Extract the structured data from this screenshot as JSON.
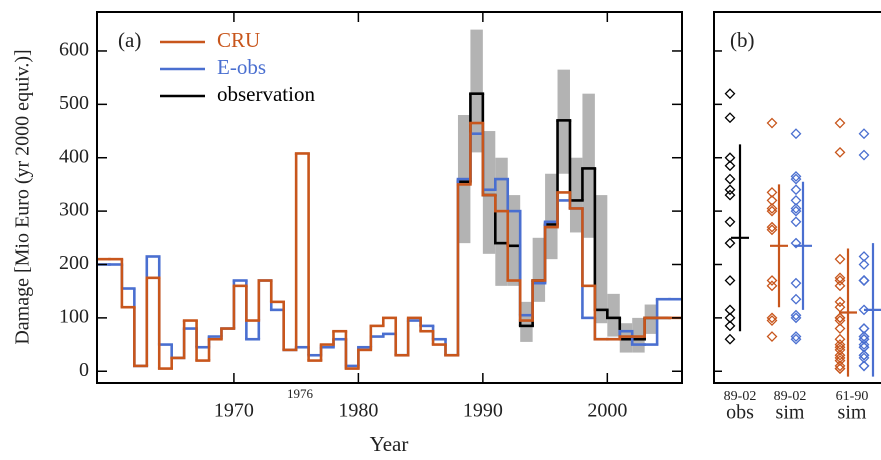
{
  "chart_data": [
    {
      "type": "step",
      "panel_label": "(a)",
      "annotation": "1976",
      "xlabel": "Year",
      "ylabel": "Damage [Mio Euro (yr 2000 equiv.)]",
      "xlim": [
        1959,
        2006
      ],
      "xticks": [
        1970,
        1980,
        1990,
        2000
      ],
      "ylim": [
        -22,
        673
      ],
      "yticks": [
        0,
        100,
        200,
        300,
        400,
        500,
        600
      ],
      "legend": "upper left",
      "x": [
        1959,
        1960,
        1961,
        1962,
        1963,
        1964,
        1965,
        1966,
        1967,
        1968,
        1969,
        1970,
        1971,
        1972,
        1973,
        1974,
        1975,
        1976,
        1977,
        1978,
        1979,
        1980,
        1981,
        1982,
        1983,
        1984,
        1985,
        1986,
        1987,
        1988,
        1989,
        1990,
        1991,
        1992,
        1993,
        1994,
        1995,
        1996,
        1997,
        1998,
        1999,
        2000,
        2001,
        2002,
        2003,
        2004,
        2005
      ],
      "band": {
        "color": "#b3b3b3",
        "low": [
          null,
          null,
          null,
          null,
          null,
          null,
          null,
          null,
          null,
          null,
          null,
          null,
          null,
          null,
          null,
          null,
          null,
          null,
          null,
          null,
          null,
          null,
          null,
          null,
          null,
          null,
          null,
          null,
          null,
          240,
          410,
          220,
          160,
          160,
          55,
          130,
          210,
          370,
          260,
          250,
          90,
          65,
          35,
          35,
          70,
          null,
          null
        ],
        "high": [
          null,
          null,
          null,
          null,
          null,
          null,
          null,
          null,
          null,
          null,
          null,
          null,
          null,
          null,
          null,
          null,
          null,
          null,
          null,
          null,
          null,
          null,
          null,
          null,
          null,
          null,
          null,
          null,
          null,
          480,
          640,
          450,
          400,
          330,
          130,
          250,
          370,
          565,
          400,
          520,
          330,
          145,
          90,
          100,
          125,
          null,
          null
        ]
      },
      "series": [
        {
          "name": "CRU",
          "color": "#c8561c",
          "values": [
            210,
            210,
            120,
            10,
            175,
            5,
            25,
            95,
            20,
            60,
            80,
            160,
            95,
            170,
            130,
            40,
            408,
            20,
            50,
            75,
            5,
            40,
            85,
            100,
            30,
            100,
            75,
            50,
            30,
            350,
            465,
            330,
            300,
            170,
            95,
            170,
            270,
            335,
            305,
            160,
            60,
            60,
            65,
            65,
            100,
            100,
            100
          ]
        },
        {
          "name": "E-obs",
          "color": "#4a6fd0",
          "values": [
            200,
            200,
            155,
            10,
            215,
            50,
            25,
            80,
            45,
            65,
            80,
            170,
            60,
            170,
            115,
            40,
            45,
            30,
            45,
            60,
            10,
            45,
            65,
            70,
            30,
            95,
            85,
            60,
            30,
            360,
            445,
            340,
            360,
            300,
            105,
            165,
            280,
            320,
            305,
            100,
            60,
            60,
            75,
            50,
            50,
            135,
            135
          ]
        },
        {
          "name": "observation",
          "color": "#000000",
          "values": [
            null,
            null,
            null,
            null,
            null,
            null,
            null,
            null,
            null,
            null,
            null,
            null,
            null,
            null,
            null,
            null,
            null,
            null,
            null,
            null,
            null,
            null,
            null,
            null,
            null,
            null,
            null,
            null,
            null,
            355,
            520,
            330,
            240,
            235,
            85,
            170,
            275,
            470,
            320,
            380,
            115,
            100,
            60,
            60,
            100,
            100,
            null
          ]
        }
      ]
    },
    {
      "type": "strip",
      "panel_label": "(b)",
      "ylim": [
        -22,
        673
      ],
      "yticks": [
        0,
        100,
        200,
        300,
        400,
        500,
        600
      ],
      "groups": [
        {
          "period": "89-02",
          "label": "obs",
          "series": [
            {
              "color": "#000000",
              "values": [
                520,
                475,
                400,
                385,
                360,
                340,
                330,
                280,
                240,
                170,
                115,
                100,
                85,
                60
              ],
              "mean": 250,
              "std": 175
            }
          ]
        },
        {
          "period": "89-02",
          "label": "sim",
          "series": [
            {
              "color": "#c8561c",
              "values": [
                465,
                335,
                320,
                305,
                300,
                270,
                265,
                170,
                160,
                100,
                95,
                65
              ],
              "mean": 235,
              "std": 115
            },
            {
              "color": "#4a6fd0",
              "values": [
                445,
                365,
                360,
                340,
                320,
                305,
                300,
                280,
                240,
                165,
                135,
                105,
                100,
                65,
                60
              ],
              "mean": 235,
              "std": 120
            }
          ]
        },
        {
          "period": "61-90",
          "label": "sim",
          "series": [
            {
              "color": "#c8561c",
              "values": [
                465,
                410,
                210,
                175,
                170,
                160,
                130,
                120,
                100,
                100,
                95,
                80,
                60,
                50,
                45,
                40,
                30,
                25,
                20,
                10,
                5,
                5
              ],
              "mean": 110,
              "std": 120
            },
            {
              "color": "#4a6fd0",
              "values": [
                445,
                405,
                215,
                200,
                170,
                170,
                170,
                115,
                80,
                80,
                65,
                65,
                60,
                60,
                50,
                45,
                45,
                30,
                30,
                25,
                10,
                10
              ],
              "mean": 115,
              "std": 125
            }
          ]
        }
      ]
    }
  ]
}
